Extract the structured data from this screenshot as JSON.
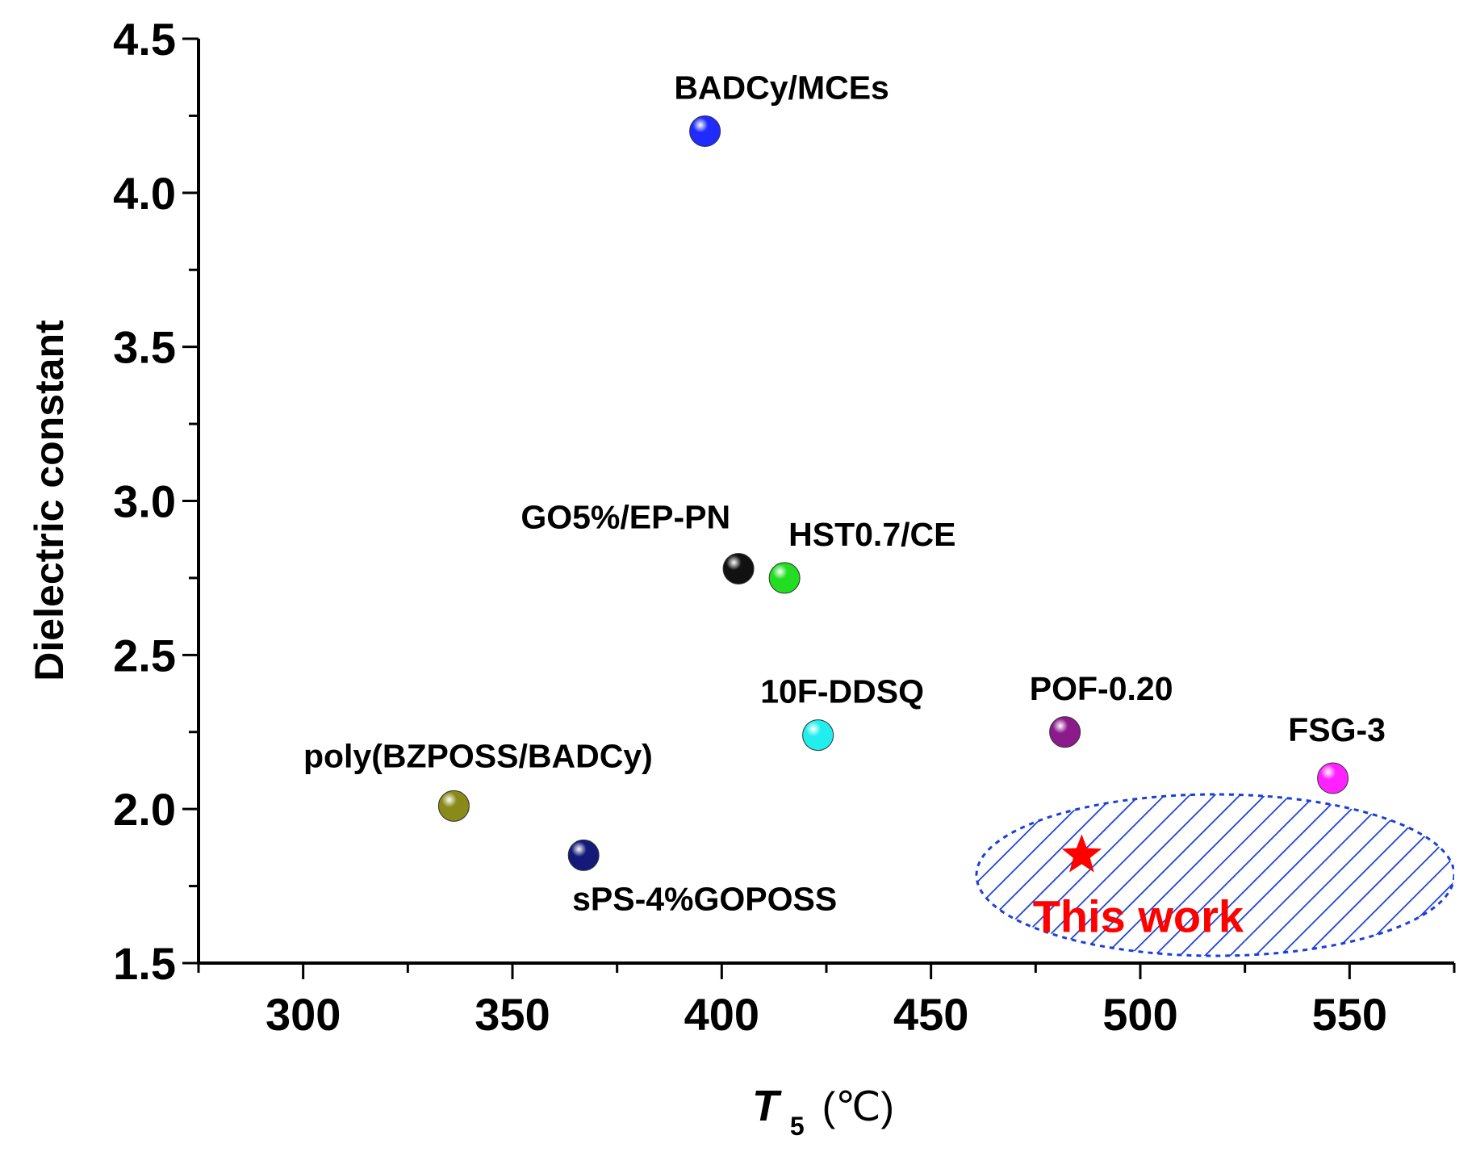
{
  "chart_data": {
    "type": "scatter",
    "title": "",
    "xlabel_main": "T",
    "xlabel_sub": "5",
    "xlabel_unit": "(℃)",
    "ylabel": "Dielectric constant",
    "xlim": [
      275,
      575
    ],
    "ylim": [
      1.5,
      4.5
    ],
    "x_ticks": [
      300,
      350,
      400,
      450,
      500,
      550
    ],
    "y_ticks": [
      1.5,
      2.0,
      2.5,
      3.0,
      3.5,
      4.0,
      4.5
    ],
    "grid": false,
    "points": [
      {
        "label": "BADCy/MCEs",
        "x": 396,
        "y": 4.2,
        "color": "#1f2bff"
      },
      {
        "label": "GO5%/EP-PN",
        "x": 404,
        "y": 2.78,
        "color": "#111111"
      },
      {
        "label": "HST0.7/CE",
        "x": 415,
        "y": 2.75,
        "color": "#22dd22"
      },
      {
        "label": "10F-DDSQ",
        "x": 423,
        "y": 2.24,
        "color": "#22eeee"
      },
      {
        "label": "POF-0.20",
        "x": 482,
        "y": 2.25,
        "color": "#8b1a8b"
      },
      {
        "label": "FSG-3",
        "x": 546,
        "y": 2.1,
        "color": "#ff22ff"
      },
      {
        "label": "poly(BZPOSS/BADCy)",
        "x": 336,
        "y": 2.01,
        "color": "#8a8a1a"
      },
      {
        "label": "sPS-4%GOPOSS",
        "x": 367,
        "y": 1.85,
        "color": "#141a7a"
      }
    ],
    "highlight": {
      "label": "This work",
      "x": 486,
      "y": 1.85,
      "color": "#ff0000",
      "marker": "star",
      "region_color": "#1a3fd6"
    }
  }
}
